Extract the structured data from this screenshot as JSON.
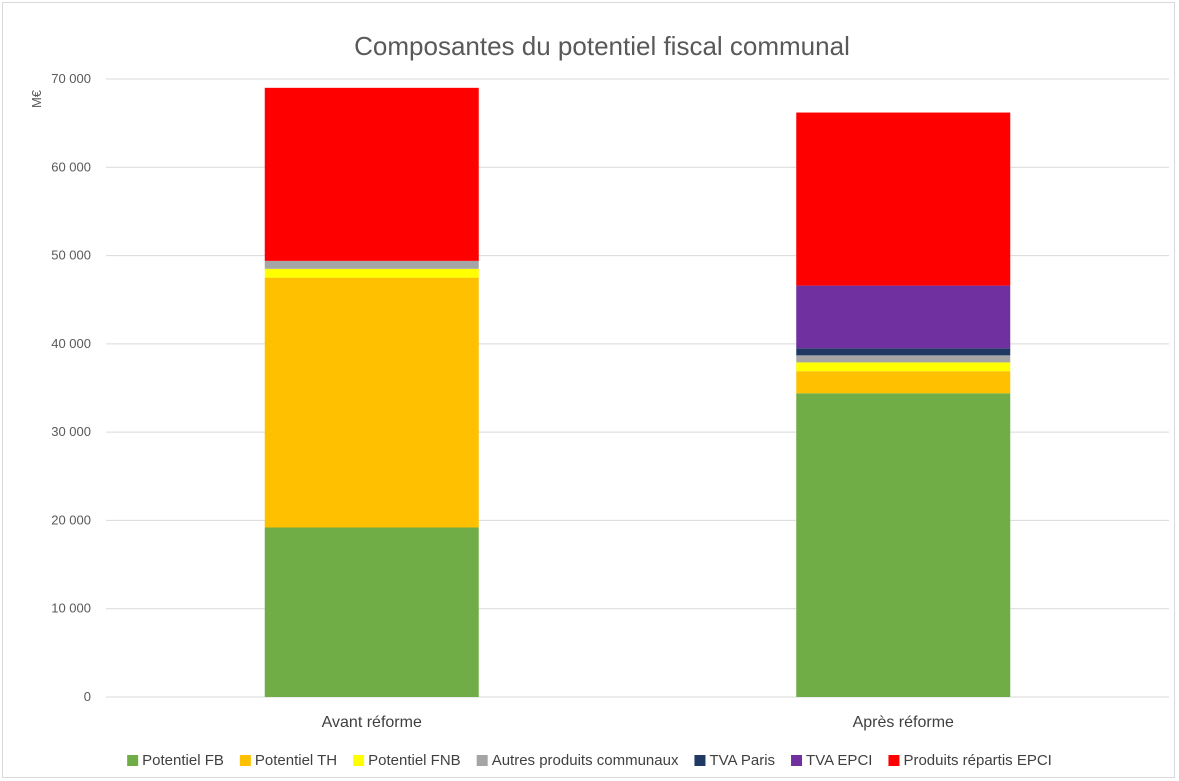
{
  "chart_data": {
    "type": "bar",
    "stacked": true,
    "title": "Composantes du potentiel fiscal communal",
    "ylabel": "M€",
    "xlabel": "",
    "ylim": [
      0,
      70000
    ],
    "yticks": [
      "0",
      "10 000",
      "20 000",
      "30 000",
      "40 000",
      "50 000",
      "60 000",
      "70 000"
    ],
    "grid": true,
    "legend_position": "bottom",
    "categories": [
      "Avant réforme",
      "Après réforme"
    ],
    "series": [
      {
        "name": "Potentiel FB",
        "color": "#70ad47",
        "values": [
          19200,
          34400
        ]
      },
      {
        "name": "Potentiel TH",
        "color": "#ffc000",
        "values": [
          28300,
          2500
        ]
      },
      {
        "name": "Potentiel FNB",
        "color": "#ffff00",
        "values": [
          1000,
          1000
        ]
      },
      {
        "name": "Autres produits communaux",
        "color": "#a5a5a5",
        "values": [
          900,
          800
        ]
      },
      {
        "name": "TVA Paris",
        "color": "#203864",
        "values": [
          0,
          800
        ]
      },
      {
        "name": "TVA EPCI",
        "color": "#7030a0",
        "values": [
          0,
          7100
        ]
      },
      {
        "name": "Produits répartis EPCI",
        "color": "#ff0000",
        "values": [
          19600,
          19600
        ]
      }
    ]
  }
}
